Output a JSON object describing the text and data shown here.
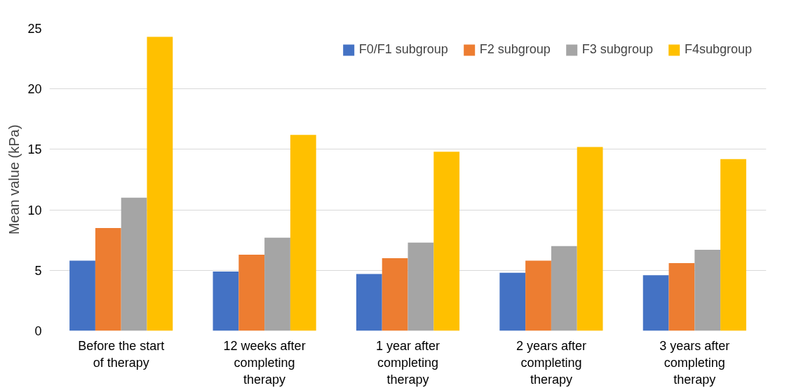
{
  "chart_data": {
    "type": "bar",
    "ylabel": "Mean value (kPa)",
    "categories": [
      "Before the start\nof therapy",
      "12 weeks after\ncompleting\ntherapy",
      "1 year after\ncompleting\ntherapy",
      "2 years after\ncompleting\ntherapy",
      "3 years after\ncompleting\ntherapy"
    ],
    "series": [
      {
        "name": "F0/F1 subgroup",
        "color": "#4472c4",
        "values": [
          5.8,
          4.9,
          4.7,
          4.8,
          4.6
        ]
      },
      {
        "name": "F2 subgroup",
        "color": "#ed7d31",
        "values": [
          8.5,
          6.3,
          6.0,
          5.8,
          5.6
        ]
      },
      {
        "name": "F3 subgroup",
        "color": "#a5a5a5",
        "values": [
          11.0,
          7.7,
          7.3,
          7.0,
          6.7
        ]
      },
      {
        "name": "F4subgroup",
        "color": "#ffc000",
        "values": [
          24.3,
          16.2,
          14.8,
          15.2,
          14.2
        ]
      }
    ],
    "ylim": [
      0,
      25
    ],
    "yticks": [
      0,
      5,
      10,
      15,
      20,
      25
    ],
    "grid": "y",
    "legend": "top right"
  }
}
